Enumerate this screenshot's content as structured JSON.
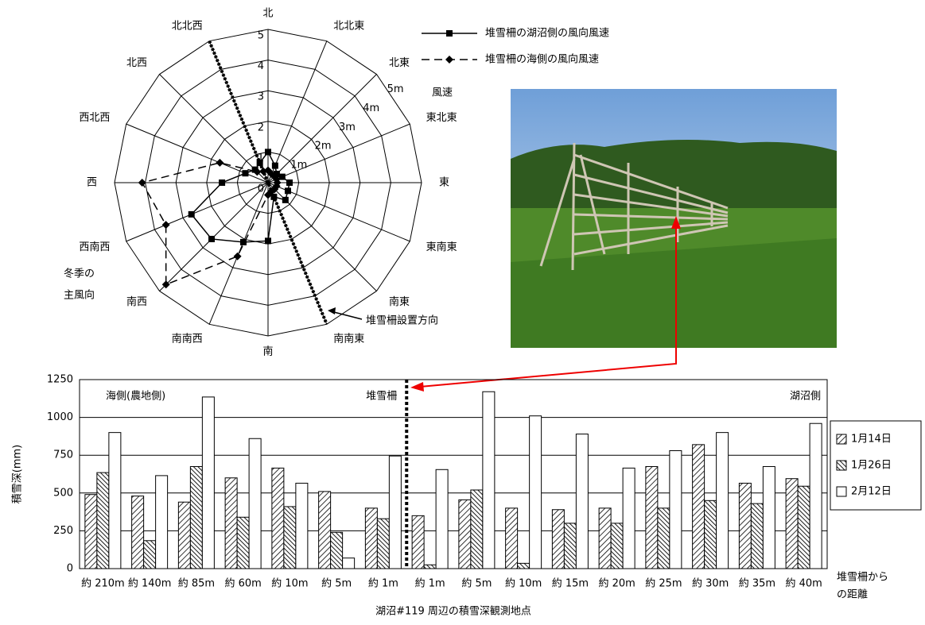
{
  "chart_data": [
    {
      "type": "radar",
      "categories": [
        "北",
        "北北東",
        "北東",
        "東北東",
        "東",
        "東南東",
        "南東",
        "南南東",
        "南",
        "南南西",
        "南西",
        "西南西",
        "西",
        "西北西",
        "北西",
        "北北西"
      ],
      "rlim": [
        0,
        5
      ],
      "rticks": [
        0,
        1,
        2,
        3,
        4,
        5
      ],
      "speed_labels": [
        {
          "value": 1,
          "label": "1m"
        },
        {
          "value": 2,
          "label": "2m"
        },
        {
          "value": 3,
          "label": "3m"
        },
        {
          "value": 4,
          "label": "4m"
        },
        {
          "value": 5,
          "label": "5m"
        }
      ],
      "speed_title": "風速",
      "main_wind_label": [
        "冬季の",
        "主風向"
      ],
      "fence_label": "堆雪柵設置方向",
      "series": [
        {
          "name": "堆雪柵の湖沼側の風向風速",
          "color": "#000000",
          "marker": "square",
          "dash": "solid",
          "values": [
            1.0,
            0.6,
            0.4,
            0.5,
            0.7,
            0.7,
            0.8,
            0.5,
            1.9,
            2.1,
            2.6,
            2.7,
            1.5,
            0.8,
            0.6,
            0.7
          ]
        },
        {
          "name": "堆雪柵の海側の風向風速",
          "color": "#000000",
          "marker": "diamond",
          "dash": "dashed",
          "values": [
            0.4,
            0.3,
            0.3,
            0.3,
            0.3,
            0.3,
            0.3,
            0.3,
            0.4,
            2.6,
            4.7,
            3.6,
            4.1,
            1.7,
            0.5,
            0.4
          ]
        }
      ]
    },
    {
      "type": "bar",
      "categories": [
        "約 210m",
        "約 140m",
        "約 85m",
        "約 60m",
        "約 10m",
        "約 5m",
        "約 1m",
        "約 1m",
        "約 5m",
        "約 10m",
        "約 15m",
        "約 20m",
        "約 25m",
        "約 30m",
        "約 35m",
        "約 40m"
      ],
      "ylim": [
        0,
        1250
      ],
      "yticks": [
        0,
        250,
        500,
        750,
        1000,
        1250
      ],
      "grid": true,
      "legend": "right",
      "ylabel": "積雪深(mm)",
      "xlabel": "湖沼#119 周辺の積雪深観測地点",
      "distance_label": [
        "堆雪柵から",
        "の距離"
      ],
      "annotations": [
        "海側(農地側)",
        "堆雪柵",
        "湖沼側"
      ],
      "series": [
        {
          "name": "1月14日",
          "color": "#ffffff",
          "pattern": "diagonal",
          "values": [
            490,
            480,
            440,
            600,
            665,
            510,
            400,
            350,
            455,
            400,
            390,
            400,
            675,
            820,
            565,
            595
          ]
        },
        {
          "name": "1月26日",
          "color": "#ffffff",
          "pattern": "cross",
          "values": [
            635,
            185,
            675,
            340,
            410,
            240,
            330,
            25,
            520,
            35,
            300,
            300,
            400,
            450,
            430,
            545
          ]
        },
        {
          "name": "2月12日",
          "color": "#ffffff",
          "pattern": "none",
          "values": [
            900,
            615,
            1135,
            860,
            565,
            70,
            745,
            655,
            1170,
            1010,
            890,
            665,
            780,
            900,
            675,
            960
          ]
        }
      ]
    }
  ]
}
